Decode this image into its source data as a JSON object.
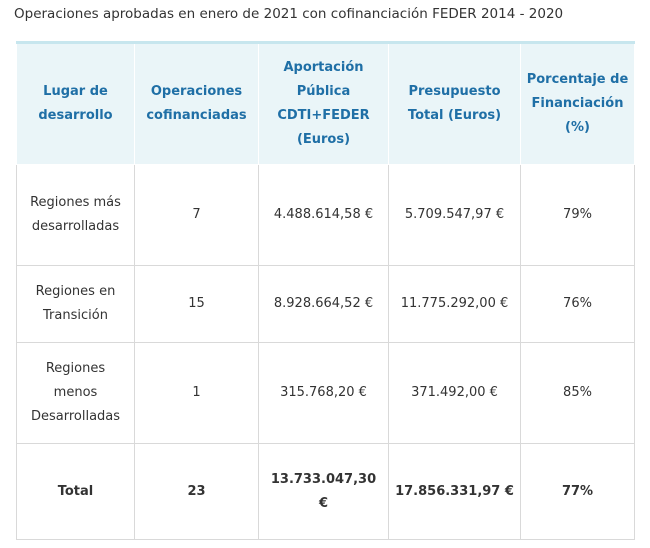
{
  "caption": "Operaciones aprobadas en enero de 2021 con cofinanciación FEDER 2014 - 2020",
  "table": {
    "headers": [
      "Lugar de desarrollo",
      "Operaciones cofinanciadas",
      "Aportación Pública CDTI+FEDER (Euros)",
      "Presupuesto Total (Euros)",
      "Porcentaje de Financiación (%)"
    ],
    "rows": [
      [
        "Regiones más desarrolladas",
        "7",
        "4.488.614,58 €",
        "5.709.547,97 €",
        "79%"
      ],
      [
        "Regiones en Transición",
        "15",
        "8.928.664,52 €",
        "11.775.292,00 €",
        "76%"
      ],
      [
        "Regiones menos Desarrolladas",
        "1",
        "315.768,20 €",
        "371.492,00 €",
        "85%"
      ]
    ],
    "total": [
      "Total",
      "23",
      "13.733.047,30 €",
      "17.856.331,97 €",
      "77%"
    ]
  },
  "colors": {
    "header_text": "#1f6fa6",
    "header_bg": "#eaf5f8",
    "header_top_border": "#c7e6ee",
    "cell_border": "#d9d9d9"
  }
}
